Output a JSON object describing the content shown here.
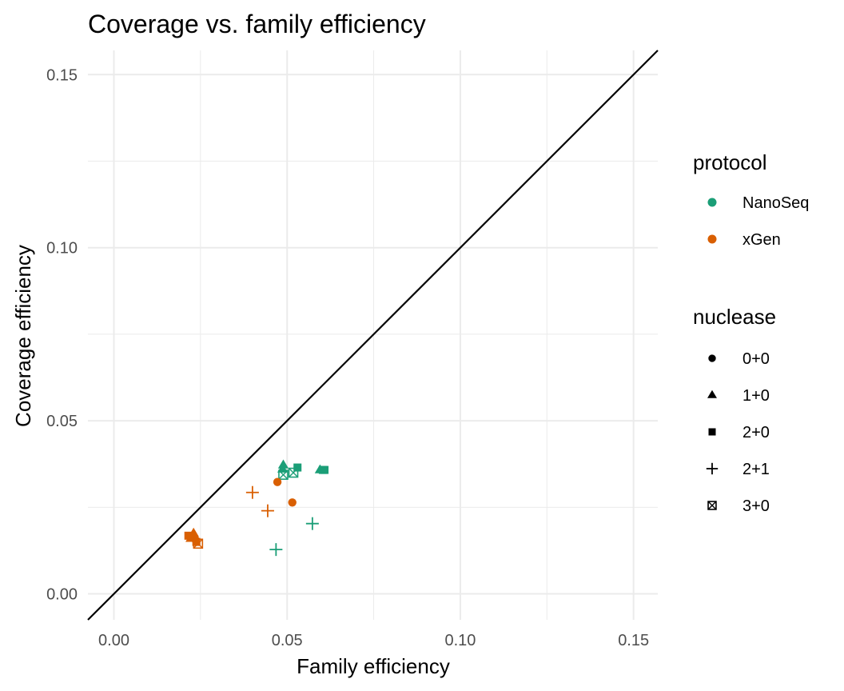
{
  "chart_data": {
    "type": "scatter",
    "title": "Coverage vs. family efficiency",
    "xlabel": "Family efficiency",
    "ylabel": "Coverage efficiency",
    "xlim": [
      -0.0075,
      0.157
    ],
    "ylim": [
      -0.0075,
      0.157
    ],
    "x_ticks": [
      0.0,
      0.05,
      0.1,
      0.15
    ],
    "x_tick_labels": [
      "0.00",
      "0.05",
      "0.10",
      "0.15"
    ],
    "y_ticks": [
      0.0,
      0.05,
      0.1,
      0.15
    ],
    "y_tick_labels": [
      "0.00",
      "0.05",
      "0.10",
      "0.15"
    ],
    "grid": true,
    "reference_line": {
      "type": "identity",
      "slope": 1,
      "intercept": 0,
      "color": "#000000"
    },
    "legend_position": "right",
    "legends": {
      "protocol": {
        "title": "protocol",
        "entries": [
          {
            "label": "NanoSeq",
            "color": "#1b9e77"
          },
          {
            "label": "xGen",
            "color": "#d95f02"
          }
        ]
      },
      "nuclease": {
        "title": "nuclease",
        "entries": [
          {
            "label": "0+0",
            "shape": "circle"
          },
          {
            "label": "1+0",
            "shape": "triangle"
          },
          {
            "label": "2+0",
            "shape": "square"
          },
          {
            "label": "2+1",
            "shape": "plus"
          },
          {
            "label": "3+0",
            "shape": "boxed-cross"
          }
        ]
      }
    },
    "points": [
      {
        "x": 0.0489,
        "y": 0.0372,
        "protocol": "NanoSeq",
        "nuclease": "1+0"
      },
      {
        "x": 0.0487,
        "y": 0.036,
        "protocol": "NanoSeq",
        "nuclease": "1+0"
      },
      {
        "x": 0.053,
        "y": 0.0365,
        "protocol": "NanoSeq",
        "nuclease": "2+0"
      },
      {
        "x": 0.0595,
        "y": 0.0358,
        "protocol": "NanoSeq",
        "nuclease": "1+0"
      },
      {
        "x": 0.0603,
        "y": 0.0358,
        "protocol": "NanoSeq",
        "nuclease": "2+0"
      },
      {
        "x": 0.0608,
        "y": 0.0358,
        "protocol": "NanoSeq",
        "nuclease": "2+0"
      },
      {
        "x": 0.0489,
        "y": 0.0344,
        "protocol": "NanoSeq",
        "nuclease": "3+0"
      },
      {
        "x": 0.0518,
        "y": 0.035,
        "protocol": "NanoSeq",
        "nuclease": "3+0"
      },
      {
        "x": 0.0573,
        "y": 0.0203,
        "protocol": "NanoSeq",
        "nuclease": "2+1"
      },
      {
        "x": 0.0468,
        "y": 0.0128,
        "protocol": "NanoSeq",
        "nuclease": "2+1"
      },
      {
        "x": 0.0472,
        "y": 0.0323,
        "protocol": "xGen",
        "nuclease": "0+0"
      },
      {
        "x": 0.0515,
        "y": 0.0264,
        "protocol": "xGen",
        "nuclease": "0+0"
      },
      {
        "x": 0.04,
        "y": 0.0293,
        "protocol": "xGen",
        "nuclease": "2+1"
      },
      {
        "x": 0.0444,
        "y": 0.024,
        "protocol": "xGen",
        "nuclease": "2+1"
      },
      {
        "x": 0.023,
        "y": 0.0175,
        "protocol": "xGen",
        "nuclease": "1+0"
      },
      {
        "x": 0.0222,
        "y": 0.016,
        "protocol": "xGen",
        "nuclease": "1+0"
      },
      {
        "x": 0.0215,
        "y": 0.0168,
        "protocol": "xGen",
        "nuclease": "2+0"
      },
      {
        "x": 0.0228,
        "y": 0.0165,
        "protocol": "xGen",
        "nuclease": "0+0"
      },
      {
        "x": 0.0235,
        "y": 0.0157,
        "protocol": "xGen",
        "nuclease": "0+0"
      },
      {
        "x": 0.0238,
        "y": 0.015,
        "protocol": "xGen",
        "nuclease": "2+0"
      },
      {
        "x": 0.0243,
        "y": 0.0145,
        "protocol": "xGen",
        "nuclease": "3+0"
      }
    ]
  }
}
